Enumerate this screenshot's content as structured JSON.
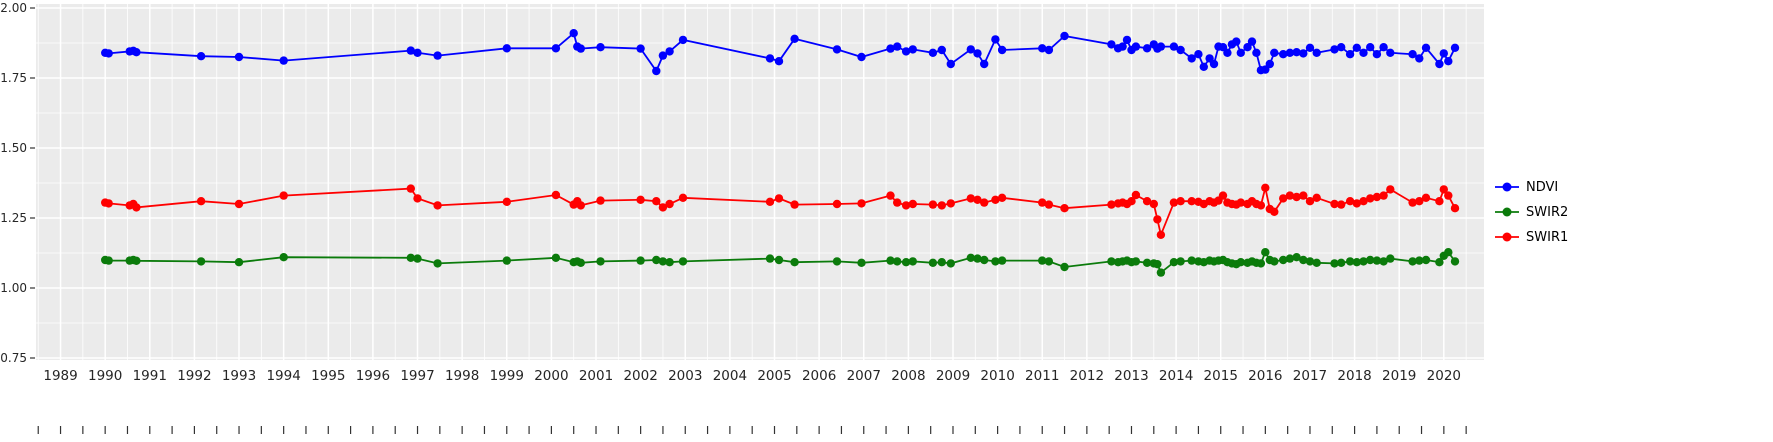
{
  "chart_data": {
    "type": "scatter",
    "title": "",
    "xlabel": "",
    "ylabel": "",
    "panel_background": "#EBEBEB",
    "grid_color": "#FFFFFF",
    "axis_text_color": "#262626",
    "tick_color": "#333333",
    "grid": true,
    "legend_position": "right",
    "x_range": [
      1988.45,
      2020.9
    ],
    "y_range": [
      0.75,
      2.0
    ],
    "x_ticks": [
      1989,
      1990,
      1991,
      1992,
      1993,
      1994,
      1995,
      1996,
      1997,
      1998,
      1999,
      2000,
      2001,
      2002,
      2003,
      2004,
      2005,
      2006,
      2007,
      2008,
      2009,
      2010,
      2011,
      2012,
      2013,
      2014,
      2015,
      2016,
      2017,
      2018,
      2019,
      2020
    ],
    "x_tick_labels": [
      "1989",
      "1990",
      "1991",
      "1992",
      "1993",
      "1994",
      "1995",
      "1996",
      "1997",
      "1998",
      "1999",
      "2000",
      "2001",
      "2002",
      "2003",
      "2004",
      "2005",
      "2006",
      "2007",
      "2008",
      "2009",
      "2010",
      "2011",
      "2012",
      "2013",
      "2014",
      "2015",
      "2016",
      "2017",
      "2018",
      "2019",
      "2020"
    ],
    "y_ticks": [
      0.75,
      1.0,
      1.25,
      1.5,
      1.75,
      2.0
    ],
    "y_tick_labels": [
      "0.75",
      "1.00",
      "1.25",
      "1.50",
      "1.75",
      "2.00"
    ],
    "y_minor_ticks": [
      0.875,
      1.125,
      1.375,
      1.625,
      1.875
    ],
    "x": [
      1990.0,
      1990.08,
      1990.55,
      1990.63,
      1990.7,
      1992.15,
      1993.0,
      1994.0,
      1996.85,
      1997.0,
      1997.45,
      1999.0,
      2000.1,
      2000.5,
      2000.58,
      2000.66,
      2001.1,
      2002.0,
      2002.35,
      2002.5,
      2002.65,
      2002.95,
      2004.9,
      2005.1,
      2005.45,
      2006.4,
      2006.95,
      2007.6,
      2007.75,
      2007.95,
      2008.1,
      2008.55,
      2008.75,
      2008.95,
      2009.4,
      2009.55,
      2009.7,
      2009.95,
      2010.1,
      2011.0,
      2011.15,
      2011.5,
      2012.55,
      2012.7,
      2012.8,
      2012.9,
      2013.0,
      2013.1,
      2013.35,
      2013.5,
      2013.58,
      2013.66,
      2013.95,
      2014.1,
      2014.35,
      2014.5,
      2014.62,
      2014.75,
      2014.85,
      2014.95,
      2015.05,
      2015.15,
      2015.25,
      2015.35,
      2015.45,
      2015.6,
      2015.7,
      2015.8,
      2015.9,
      2016.0,
      2016.1,
      2016.2,
      2016.4,
      2016.55,
      2016.7,
      2016.85,
      2017.0,
      2017.15,
      2017.55,
      2017.7,
      2017.9,
      2018.05,
      2018.2,
      2018.35,
      2018.5,
      2018.65,
      2018.8,
      2019.3,
      2019.45,
      2019.6,
      2019.9,
      2020.0,
      2020.1,
      2020.25
    ],
    "series": [
      {
        "name": "NDVI",
        "color": "#0000FF",
        "values": [
          1.84,
          1.838,
          1.845,
          1.847,
          1.842,
          1.828,
          1.825,
          1.812,
          1.848,
          1.84,
          1.83,
          1.856,
          1.856,
          1.91,
          1.862,
          1.855,
          1.86,
          1.855,
          1.775,
          1.83,
          1.845,
          1.886,
          1.82,
          1.81,
          1.89,
          1.852,
          1.825,
          1.855,
          1.862,
          1.845,
          1.852,
          1.84,
          1.85,
          1.8,
          1.852,
          1.838,
          1.8,
          1.888,
          1.85,
          1.856,
          1.85,
          1.9,
          1.87,
          1.856,
          1.862,
          1.886,
          1.85,
          1.862,
          1.856,
          1.87,
          1.855,
          1.862,
          1.862,
          1.85,
          1.82,
          1.835,
          1.79,
          1.82,
          1.8,
          1.862,
          1.86,
          1.84,
          1.87,
          1.88,
          1.84,
          1.86,
          1.88,
          1.84,
          1.778,
          1.78,
          1.8,
          1.84,
          1.835,
          1.84,
          1.842,
          1.838,
          1.858,
          1.84,
          1.852,
          1.86,
          1.835,
          1.858,
          1.84,
          1.86,
          1.835,
          1.86,
          1.84,
          1.835,
          1.82,
          1.858,
          1.8,
          1.838,
          1.81,
          1.858
        ]
      },
      {
        "name": "SWIR2",
        "color": "#0B7B0B",
        "values": [
          1.1,
          1.098,
          1.098,
          1.1,
          1.097,
          1.095,
          1.092,
          1.11,
          1.108,
          1.105,
          1.088,
          1.098,
          1.108,
          1.092,
          1.095,
          1.09,
          1.095,
          1.098,
          1.1,
          1.095,
          1.092,
          1.095,
          1.105,
          1.1,
          1.092,
          1.095,
          1.09,
          1.098,
          1.095,
          1.092,
          1.095,
          1.09,
          1.092,
          1.088,
          1.108,
          1.105,
          1.1,
          1.095,
          1.098,
          1.098,
          1.095,
          1.075,
          1.095,
          1.092,
          1.095,
          1.098,
          1.092,
          1.095,
          1.09,
          1.088,
          1.085,
          1.055,
          1.092,
          1.095,
          1.098,
          1.095,
          1.092,
          1.098,
          1.095,
          1.098,
          1.1,
          1.092,
          1.088,
          1.085,
          1.092,
          1.09,
          1.095,
          1.09,
          1.088,
          1.128,
          1.1,
          1.095,
          1.1,
          1.105,
          1.11,
          1.1,
          1.095,
          1.09,
          1.088,
          1.09,
          1.095,
          1.092,
          1.095,
          1.1,
          1.098,
          1.095,
          1.105,
          1.095,
          1.098,
          1.1,
          1.092,
          1.115,
          1.128,
          1.095
        ]
      },
      {
        "name": "SWIR1",
        "color": "#FF0000",
        "values": [
          1.305,
          1.302,
          1.295,
          1.3,
          1.288,
          1.31,
          1.3,
          1.33,
          1.355,
          1.32,
          1.295,
          1.308,
          1.332,
          1.298,
          1.31,
          1.295,
          1.312,
          1.315,
          1.31,
          1.288,
          1.3,
          1.322,
          1.308,
          1.32,
          1.298,
          1.3,
          1.302,
          1.33,
          1.305,
          1.295,
          1.3,
          1.298,
          1.295,
          1.302,
          1.32,
          1.315,
          1.305,
          1.315,
          1.322,
          1.305,
          1.298,
          1.285,
          1.298,
          1.302,
          1.305,
          1.3,
          1.31,
          1.332,
          1.31,
          1.3,
          1.245,
          1.19,
          1.305,
          1.31,
          1.31,
          1.308,
          1.3,
          1.31,
          1.305,
          1.312,
          1.33,
          1.305,
          1.3,
          1.298,
          1.305,
          1.3,
          1.31,
          1.3,
          1.295,
          1.358,
          1.282,
          1.272,
          1.32,
          1.33,
          1.325,
          1.33,
          1.31,
          1.322,
          1.3,
          1.298,
          1.31,
          1.302,
          1.31,
          1.32,
          1.325,
          1.33,
          1.352,
          1.305,
          1.31,
          1.322,
          1.31,
          1.352,
          1.33,
          1.285
        ]
      }
    ]
  },
  "legend": {
    "items": [
      {
        "label": "NDVI",
        "color": "#0000FF"
      },
      {
        "label": "SWIR2",
        "color": "#0B7B0B"
      },
      {
        "label": "SWIR1",
        "color": "#FF0000"
      }
    ]
  }
}
